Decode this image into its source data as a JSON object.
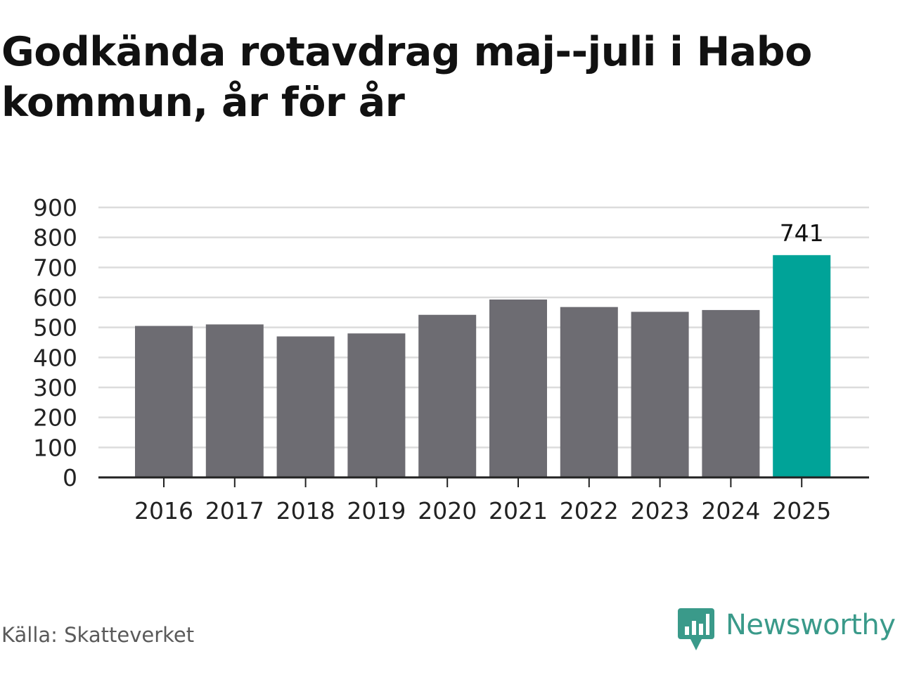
{
  "title": "Godkända rotavdrag maj--juli i Habo kommun, år för år",
  "source": "Källa: Skatteverket",
  "brand": {
    "name": "Newsworthy",
    "logo_icon": "newsworthy-bar-chart-logo-icon",
    "color": "#3a9a8a"
  },
  "colors": {
    "bar": "#6d6c72",
    "highlight": "#00a398",
    "grid": "#dcdcdc",
    "axis": "#222222"
  },
  "chart_data": {
    "type": "bar",
    "categories": [
      "2016",
      "2017",
      "2018",
      "2019",
      "2020",
      "2021",
      "2022",
      "2023",
      "2024",
      "2025"
    ],
    "values": [
      505,
      510,
      470,
      480,
      542,
      593,
      568,
      552,
      558,
      741
    ],
    "highlight_index": 9,
    "data_labels": [
      {
        "index": 9,
        "text": "741"
      }
    ],
    "ylim": [
      0,
      900
    ],
    "yticks": [
      0,
      100,
      200,
      300,
      400,
      500,
      600,
      700,
      800,
      900
    ],
    "grid": true,
    "xlabel": "",
    "ylabel": ""
  }
}
